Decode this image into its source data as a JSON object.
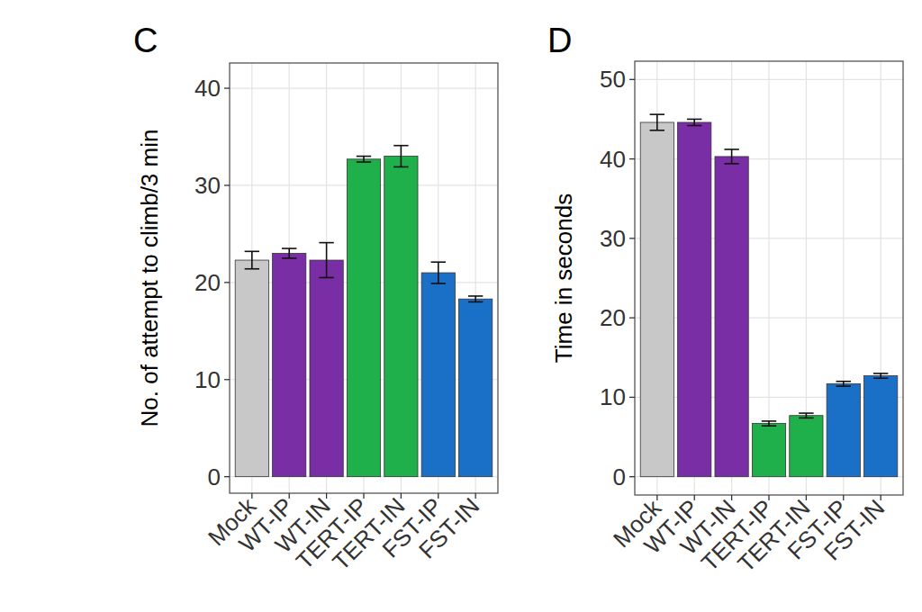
{
  "chart_data": [
    {
      "type": "bar",
      "title": "C",
      "y_label": "No. of attempt to climb/3 min",
      "categories": [
        "Mock",
        "WT-IP",
        "WT-IN",
        "TERT-IP",
        "TERT-IN",
        "FST-IP",
        "FST-IN"
      ],
      "values": [
        22.3,
        23.0,
        22.3,
        32.7,
        33.0,
        21.0,
        18.3
      ],
      "errors": [
        0.9,
        0.5,
        1.8,
        0.3,
        1.1,
        1.1,
        0.3
      ],
      "colors": [
        "#c8c8c8",
        "#7a2ea6",
        "#7a2ea6",
        "#1faf4b",
        "#1faf4b",
        "#1a6fc6",
        "#1a6fc6"
      ],
      "ylim": [
        -1.7,
        42.6
      ],
      "yticks": [
        0,
        10,
        20,
        30,
        40
      ],
      "grid": true
    },
    {
      "type": "bar",
      "title": "D",
      "y_label": "Time in seconds",
      "categories": [
        "Mock",
        "WT-IP",
        "WT-IN",
        "TERT-IP",
        "TERT-IN",
        "FST-IP",
        "FST-IN"
      ],
      "values": [
        44.6,
        44.6,
        40.3,
        6.7,
        7.7,
        11.7,
        12.7
      ],
      "errors": [
        1.0,
        0.4,
        0.9,
        0.3,
        0.3,
        0.3,
        0.3
      ],
      "colors": [
        "#c8c8c8",
        "#7a2ea6",
        "#7a2ea6",
        "#1faf4b",
        "#1faf4b",
        "#1a6fc6",
        "#1a6fc6"
      ],
      "ylim": [
        -2.3,
        52.3
      ],
      "yticks": [
        0,
        10,
        20,
        30,
        40,
        50
      ],
      "grid": true
    }
  ]
}
